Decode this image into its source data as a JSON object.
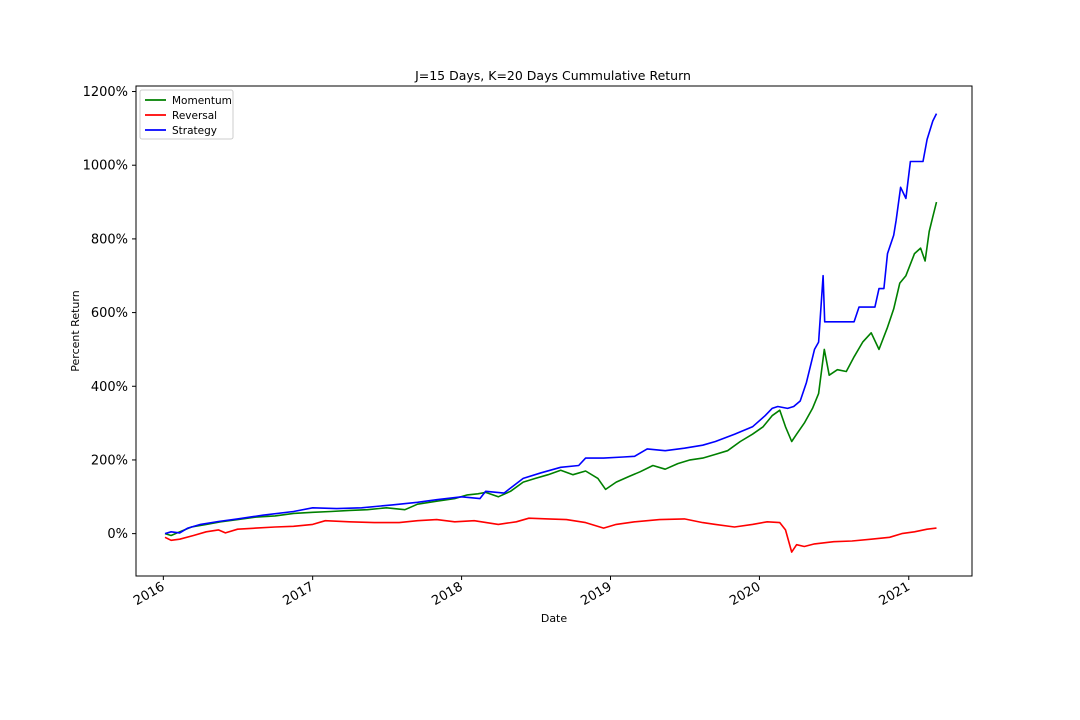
{
  "chart_data": {
    "type": "line",
    "title": "J=15 Days, K=20 Days Cummulative Return",
    "xlabel": "Date",
    "ylabel": "Percent Return",
    "xlim": [
      "2015-10-26",
      "2021-06-05"
    ],
    "ylim": [
      -115,
      1215
    ],
    "x_ticks": [
      {
        "label": "2016",
        "date": "2016-01-01"
      },
      {
        "label": "2017",
        "date": "2017-01-01"
      },
      {
        "label": "2018",
        "date": "2018-01-01"
      },
      {
        "label": "2019",
        "date": "2019-01-01"
      },
      {
        "label": "2020",
        "date": "2020-01-01"
      },
      {
        "label": "2021",
        "date": "2021-01-01"
      }
    ],
    "y_ticks": [
      {
        "label": "0%",
        "value": 0
      },
      {
        "label": "200%",
        "value": 200
      },
      {
        "label": "400%",
        "value": 400
      },
      {
        "label": "600%",
        "value": 600
      },
      {
        "label": "800%",
        "value": 800
      },
      {
        "label": "1000%",
        "value": 1000
      },
      {
        "label": "1200%",
        "value": 1200
      }
    ],
    "legend_position": "top-left",
    "grid": false,
    "series": [
      {
        "name": "Momentum",
        "color": "#008000",
        "points": [
          [
            "2016-01-05",
            0
          ],
          [
            "2016-01-20",
            -5
          ],
          [
            "2016-02-10",
            5
          ],
          [
            "2016-03-10",
            18
          ],
          [
            "2016-04-15",
            25
          ],
          [
            "2016-05-20",
            32
          ],
          [
            "2016-07-01",
            38
          ],
          [
            "2016-08-15",
            45
          ],
          [
            "2016-10-01",
            48
          ],
          [
            "2016-11-15",
            55
          ],
          [
            "2017-01-01",
            58
          ],
          [
            "2017-02-15",
            60
          ],
          [
            "2017-04-01",
            63
          ],
          [
            "2017-05-15",
            65
          ],
          [
            "2017-07-01",
            70
          ],
          [
            "2017-08-15",
            65
          ],
          [
            "2017-09-15",
            80
          ],
          [
            "2017-11-01",
            88
          ],
          [
            "2017-12-15",
            95
          ],
          [
            "2018-01-15",
            105
          ],
          [
            "2018-02-10",
            108
          ],
          [
            "2018-03-01",
            112
          ],
          [
            "2018-04-01",
            100
          ],
          [
            "2018-05-01",
            115
          ],
          [
            "2018-06-01",
            140
          ],
          [
            "2018-07-01",
            150
          ],
          [
            "2018-08-01",
            160
          ],
          [
            "2018-09-01",
            172
          ],
          [
            "2018-10-01",
            160
          ],
          [
            "2018-11-01",
            170
          ],
          [
            "2018-12-01",
            150
          ],
          [
            "2018-12-20",
            120
          ],
          [
            "2019-01-15",
            140
          ],
          [
            "2019-02-15",
            155
          ],
          [
            "2019-03-15",
            168
          ],
          [
            "2019-04-15",
            185
          ],
          [
            "2019-05-15",
            175
          ],
          [
            "2019-06-15",
            190
          ],
          [
            "2019-07-15",
            200
          ],
          [
            "2019-08-15",
            205
          ],
          [
            "2019-09-15",
            215
          ],
          [
            "2019-10-15",
            225
          ],
          [
            "2019-11-15",
            250
          ],
          [
            "2019-12-15",
            270
          ],
          [
            "2020-01-10",
            290
          ],
          [
            "2020-02-01",
            320
          ],
          [
            "2020-02-20",
            335
          ],
          [
            "2020-03-05",
            290
          ],
          [
            "2020-03-20",
            250
          ],
          [
            "2020-04-01",
            270
          ],
          [
            "2020-04-20",
            300
          ],
          [
            "2020-05-10",
            340
          ],
          [
            "2020-05-25",
            380
          ],
          [
            "2020-06-08",
            500
          ],
          [
            "2020-06-20",
            430
          ],
          [
            "2020-07-10",
            445
          ],
          [
            "2020-08-01",
            440
          ],
          [
            "2020-08-20",
            480
          ],
          [
            "2020-09-10",
            520
          ],
          [
            "2020-10-01",
            545
          ],
          [
            "2020-10-20",
            500
          ],
          [
            "2020-11-10",
            560
          ],
          [
            "2020-11-25",
            610
          ],
          [
            "2020-12-10",
            680
          ],
          [
            "2020-12-25",
            700
          ],
          [
            "2021-01-15",
            760
          ],
          [
            "2021-01-30",
            775
          ],
          [
            "2021-02-10",
            740
          ],
          [
            "2021-02-20",
            820
          ],
          [
            "2021-03-01",
            860
          ],
          [
            "2021-03-10",
            900
          ]
        ]
      },
      {
        "name": "Reversal",
        "color": "#ff0000",
        "points": [
          [
            "2016-01-05",
            -10
          ],
          [
            "2016-01-20",
            -18
          ],
          [
            "2016-02-10",
            -15
          ],
          [
            "2016-03-15",
            -5
          ],
          [
            "2016-04-15",
            5
          ],
          [
            "2016-05-15",
            10
          ],
          [
            "2016-06-01",
            2
          ],
          [
            "2016-07-01",
            12
          ],
          [
            "2016-08-15",
            15
          ],
          [
            "2016-10-01",
            18
          ],
          [
            "2016-11-15",
            20
          ],
          [
            "2017-01-01",
            25
          ],
          [
            "2017-02-01",
            35
          ],
          [
            "2017-04-01",
            32
          ],
          [
            "2017-06-01",
            30
          ],
          [
            "2017-08-01",
            30
          ],
          [
            "2017-09-15",
            35
          ],
          [
            "2017-11-01",
            38
          ],
          [
            "2017-12-15",
            32
          ],
          [
            "2018-02-01",
            35
          ],
          [
            "2018-04-01",
            25
          ],
          [
            "2018-05-15",
            32
          ],
          [
            "2018-06-15",
            42
          ],
          [
            "2018-08-01",
            40
          ],
          [
            "2018-09-15",
            38
          ],
          [
            "2018-11-01",
            30
          ],
          [
            "2018-12-15",
            15
          ],
          [
            "2019-01-15",
            25
          ],
          [
            "2019-03-01",
            32
          ],
          [
            "2019-05-01",
            38
          ],
          [
            "2019-07-01",
            40
          ],
          [
            "2019-08-15",
            30
          ],
          [
            "2019-09-15",
            25
          ],
          [
            "2019-11-01",
            18
          ],
          [
            "2019-12-15",
            25
          ],
          [
            "2020-01-20",
            32
          ],
          [
            "2020-02-20",
            30
          ],
          [
            "2020-03-05",
            10
          ],
          [
            "2020-03-20",
            -50
          ],
          [
            "2020-04-01",
            -30
          ],
          [
            "2020-04-20",
            -35
          ],
          [
            "2020-05-15",
            -28
          ],
          [
            "2020-07-01",
            -22
          ],
          [
            "2020-08-15",
            -20
          ],
          [
            "2020-10-01",
            -15
          ],
          [
            "2020-11-15",
            -10
          ],
          [
            "2020-12-15",
            0
          ],
          [
            "2021-01-15",
            5
          ],
          [
            "2021-02-15",
            12
          ],
          [
            "2021-03-10",
            15
          ]
        ]
      },
      {
        "name": "Strategy",
        "color": "#0000ff",
        "points": [
          [
            "2016-01-05",
            0
          ],
          [
            "2016-01-20",
            5
          ],
          [
            "2016-02-10",
            2
          ],
          [
            "2016-03-01",
            15
          ],
          [
            "2016-04-01",
            25
          ],
          [
            "2016-05-15",
            33
          ],
          [
            "2016-07-01",
            40
          ],
          [
            "2016-09-01",
            50
          ],
          [
            "2016-11-15",
            60
          ],
          [
            "2017-01-01",
            70
          ],
          [
            "2017-03-01",
            68
          ],
          [
            "2017-05-01",
            70
          ],
          [
            "2017-07-15",
            78
          ],
          [
            "2017-09-15",
            85
          ],
          [
            "2017-11-01",
            92
          ],
          [
            "2018-01-01",
            100
          ],
          [
            "2018-02-15",
            95
          ],
          [
            "2018-03-01",
            115
          ],
          [
            "2018-04-15",
            110
          ],
          [
            "2018-06-01",
            150
          ],
          [
            "2018-07-15",
            165
          ],
          [
            "2018-09-01",
            180
          ],
          [
            "2018-10-15",
            185
          ],
          [
            "2018-11-01",
            205
          ],
          [
            "2018-12-15",
            205
          ],
          [
            "2019-02-01",
            208
          ],
          [
            "2019-03-01",
            210
          ],
          [
            "2019-04-01",
            230
          ],
          [
            "2019-05-15",
            225
          ],
          [
            "2019-07-01",
            232
          ],
          [
            "2019-08-15",
            240
          ],
          [
            "2019-09-15",
            250
          ],
          [
            "2019-11-01",
            270
          ],
          [
            "2019-12-15",
            290
          ],
          [
            "2020-01-15",
            320
          ],
          [
            "2020-02-01",
            340
          ],
          [
            "2020-02-15",
            345
          ],
          [
            "2020-03-10",
            340
          ],
          [
            "2020-03-25",
            345
          ],
          [
            "2020-04-10",
            360
          ],
          [
            "2020-04-25",
            410
          ],
          [
            "2020-05-15",
            500
          ],
          [
            "2020-05-25",
            520
          ],
          [
            "2020-06-05",
            700
          ],
          [
            "2020-06-09",
            575
          ],
          [
            "2020-07-15",
            575
          ],
          [
            "2020-08-20",
            575
          ],
          [
            "2020-09-01",
            615
          ],
          [
            "2020-10-10",
            615
          ],
          [
            "2020-10-20",
            665
          ],
          [
            "2020-11-01",
            665
          ],
          [
            "2020-11-10",
            760
          ],
          [
            "2020-11-25",
            810
          ],
          [
            "2020-12-01",
            850
          ],
          [
            "2020-12-12",
            940
          ],
          [
            "2020-12-25",
            910
          ],
          [
            "2021-01-05",
            1010
          ],
          [
            "2021-01-20",
            1010
          ],
          [
            "2021-02-05",
            1010
          ],
          [
            "2021-02-15",
            1070
          ],
          [
            "2021-03-01",
            1120
          ],
          [
            "2021-03-10",
            1140
          ]
        ]
      }
    ]
  }
}
